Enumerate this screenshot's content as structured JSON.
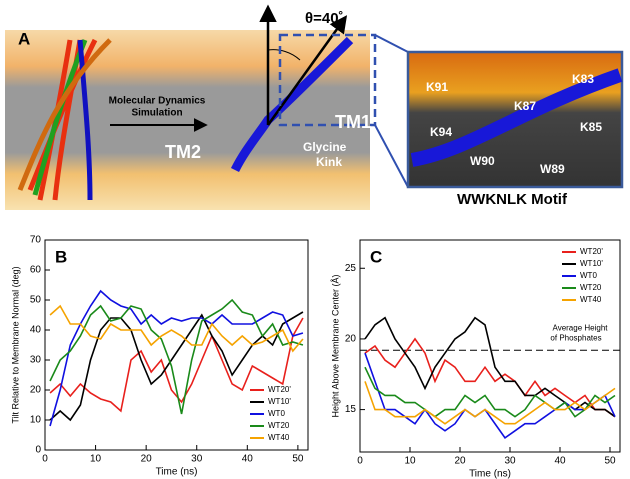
{
  "panel_a": {
    "label": "A",
    "arrow_text": [
      "Molecular Dynamics",
      "Simulation"
    ],
    "angle": "θ=40˚",
    "tm1": "TM1",
    "tm2": "TM2",
    "kink": [
      "Glycine",
      "Kink"
    ],
    "residues": [
      "K91",
      "K83",
      "K87",
      "K94",
      "K85",
      "W90",
      "W89"
    ],
    "motif": "WWKNLK Motif"
  },
  "chart_data": [
    {
      "type": "line",
      "panel": "B",
      "xlabel": "Time (ns)",
      "ylabel": "Tilt Relative to Membrane Normal (deg)",
      "x": [
        1,
        3,
        5,
        7,
        9,
        11,
        13,
        15,
        17,
        19,
        21,
        23,
        25,
        27,
        29,
        31,
        33,
        35,
        37,
        39,
        41,
        43,
        45,
        47,
        49,
        51
      ],
      "xlim": [
        0,
        52
      ],
      "xticks": [
        0,
        10,
        20,
        30,
        40,
        50
      ],
      "ylim": [
        0,
        70
      ],
      "yticks": [
        0,
        10,
        20,
        30,
        40,
        50,
        60,
        70
      ],
      "legend": "lower right",
      "series": [
        {
          "name": "WT20'",
          "color": "#e8201c",
          "values": [
            19,
            22,
            18,
            22,
            19,
            17,
            16,
            13,
            30,
            33,
            26,
            30,
            20,
            16,
            22,
            30,
            38,
            30,
            22,
            20,
            28,
            26,
            24,
            22,
            38,
            44
          ]
        },
        {
          "name": "WT10'",
          "color": "#000000",
          "values": [
            10,
            13,
            10,
            15,
            30,
            40,
            44,
            44,
            40,
            30,
            22,
            25,
            30,
            35,
            40,
            45,
            38,
            33,
            25,
            30,
            35,
            38,
            35,
            42,
            44,
            46
          ]
        },
        {
          "name": "WT0",
          "color": "#1010e0",
          "values": [
            8,
            20,
            35,
            42,
            48,
            53,
            50,
            48,
            47,
            42,
            45,
            42,
            44,
            43,
            44,
            44,
            42,
            45,
            42,
            42,
            42,
            44,
            46,
            45,
            38,
            39
          ]
        },
        {
          "name": "WT20",
          "color": "#1a8a1a",
          "values": [
            23,
            30,
            33,
            38,
            45,
            48,
            43,
            44,
            48,
            47,
            40,
            37,
            28,
            12,
            30,
            43,
            45,
            47,
            50,
            46,
            45,
            38,
            42,
            35,
            36,
            35
          ]
        },
        {
          "name": "WT40",
          "color": "#f5a300",
          "values": [
            45,
            48,
            42,
            42,
            38,
            37,
            42,
            40,
            40,
            40,
            35,
            38,
            40,
            38,
            35,
            35,
            42,
            38,
            35,
            38,
            35,
            36,
            38,
            40,
            33,
            37
          ]
        }
      ]
    },
    {
      "type": "line",
      "panel": "C",
      "xlabel": "Time (ns)",
      "ylabel": "Height Above Membrane Center (Å)",
      "x": [
        1,
        3,
        5,
        7,
        9,
        11,
        13,
        15,
        17,
        19,
        21,
        23,
        25,
        27,
        29,
        31,
        33,
        35,
        37,
        39,
        41,
        43,
        45,
        47,
        49,
        51
      ],
      "xlim": [
        0,
        52
      ],
      "xticks": [
        0,
        10,
        20,
        30,
        40,
        50
      ],
      "ylim": [
        12,
        27
      ],
      "yticks": [
        15,
        20,
        25
      ],
      "legend": "upper right",
      "hline": 19.2,
      "hline_label": [
        "Average Height",
        "of Phosphates"
      ],
      "series": [
        {
          "name": "WT20'",
          "color": "#e8201c",
          "values": [
            19,
            19.5,
            18.5,
            18,
            19,
            20,
            19,
            17,
            18.5,
            18,
            17,
            17,
            18,
            17,
            17.5,
            17,
            16,
            17,
            16,
            16.5,
            16,
            15.5,
            16,
            15,
            15,
            14.5
          ]
        },
        {
          "name": "WT10'",
          "color": "#000000",
          "values": [
            20,
            21,
            21.5,
            20,
            19,
            18,
            16.5,
            18,
            19,
            20,
            20.5,
            21.5,
            21,
            18,
            17,
            17,
            16,
            16,
            16.5,
            16,
            15.5,
            15,
            15.5,
            15,
            15,
            14.5
          ]
        },
        {
          "name": "WT0",
          "color": "#1010e0",
          "values": [
            19,
            17,
            15,
            15,
            14.5,
            14,
            15,
            14,
            13.5,
            14,
            15,
            14.5,
            15,
            14,
            13,
            13.5,
            14,
            14,
            14.5,
            15,
            15.5,
            15,
            15,
            15.5,
            16,
            14.5
          ]
        },
        {
          "name": "WT20",
          "color": "#1a8a1a",
          "values": [
            18,
            16.5,
            16,
            16,
            15.5,
            15.5,
            15,
            14.5,
            15,
            15,
            16,
            15.5,
            16,
            15,
            15,
            14.5,
            15,
            16,
            15.5,
            15,
            15.5,
            14.5,
            15,
            16,
            15.5,
            16
          ]
        },
        {
          "name": "WT40",
          "color": "#f5a300",
          "values": [
            17,
            15,
            15,
            14.5,
            14.5,
            14.5,
            15,
            14.5,
            14,
            14.5,
            15,
            14.5,
            15,
            14.5,
            14,
            14,
            14.5,
            15,
            15.5,
            15,
            15,
            15.5,
            15,
            15.5,
            16,
            16.5
          ]
        }
      ]
    }
  ]
}
